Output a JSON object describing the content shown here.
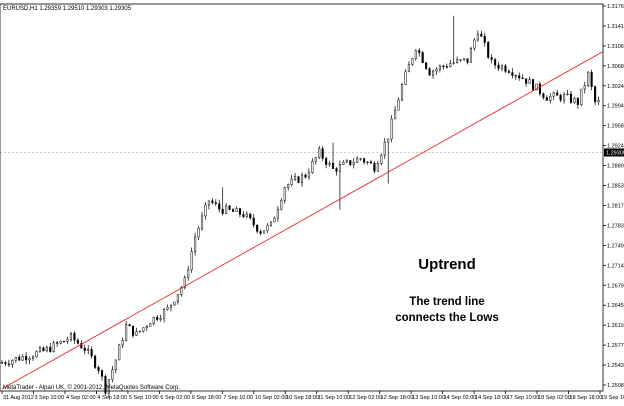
{
  "chart_data": {
    "type": "candlestick",
    "header": "EURUSD,H1  1.29359 1.29510 1.29303 1.29305",
    "footer": "MetaTrader - Alpari UK, © 2001-2012, MetaQuotes Software Corp.",
    "current_price": "1.29305",
    "y_ticks": [
      "1.31760",
      "1.31415",
      "1.31060",
      "1.30680",
      "1.30240",
      "1.29940",
      "1.29585",
      "1.29245",
      "1.28895",
      "1.28535",
      "1.28175",
      "1.27830",
      "1.27495",
      "1.27140",
      "1.26795",
      "1.26455",
      "1.26110",
      "1.25775",
      "1.25435",
      "1.25080"
    ],
    "x_ticks": [
      "31 Aug 2012",
      "3 Sep 10:00",
      "4 Sep 02:00",
      "4 Sep 18:00",
      "5 Sep 10:00",
      "6 Sep 02:00",
      "6 Sep 18:00",
      "7 Sep 10:00",
      "10 Sep 02:00",
      "10 Sep 18:00",
      "11 Sep 10:00",
      "12 Sep 02:00",
      "12 Sep 18:00",
      "13 Sep 10:00",
      "14 Sep 02:00",
      "14 Sep 18:00",
      "17 Sep 10:00",
      "18 Sep 02:00",
      "18 Sep 18:00",
      "19 Sep 10:00"
    ],
    "ylim": [
      1.2504,
      1.3196
    ],
    "annotation_title": "Uptrend",
    "annotation_lines": [
      "The trend line",
      "connects the Lows"
    ],
    "trend_line": {
      "from": {
        "bar": 0,
        "price": 1.2508
      },
      "to": {
        "bar": 185,
        "price": 1.3148
      }
    },
    "path": [
      [
        0,
        1.2555
      ],
      [
        12,
        1.2575
      ],
      [
        20,
        1.26
      ],
      [
        24,
        1.258
      ],
      [
        28,
        1.2545
      ],
      [
        30,
        1.2508
      ],
      [
        33,
        1.256
      ],
      [
        36,
        1.262
      ],
      [
        39,
        1.2605
      ],
      [
        43,
        1.263
      ],
      [
        48,
        1.265
      ],
      [
        53,
        1.27
      ],
      [
        56,
        1.278
      ],
      [
        60,
        1.2845
      ],
      [
        63,
        1.283
      ],
      [
        70,
        1.282
      ],
      [
        75,
        1.279
      ],
      [
        78,
        1.28
      ],
      [
        82,
        1.287
      ],
      [
        88,
        1.289
      ],
      [
        92,
        1.293
      ],
      [
        96,
        1.29
      ],
      [
        100,
        1.291
      ],
      [
        104,
        1.292
      ],
      [
        108,
        1.2905
      ],
      [
        112,
        1.296
      ],
      [
        116,
        1.305
      ],
      [
        120,
        1.312
      ],
      [
        124,
        1.3075
      ],
      [
        130,
        1.309
      ],
      [
        135,
        1.3095
      ],
      [
        138,
        1.315
      ],
      [
        142,
        1.309
      ],
      [
        147,
        1.308
      ],
      [
        152,
        1.306
      ],
      [
        158,
        1.303
      ],
      [
        163,
        1.303
      ],
      [
        167,
        1.302
      ],
      [
        170,
        1.307
      ],
      [
        172,
        1.302
      ]
    ],
    "spikes": [
      {
        "bar": 30,
        "low": 1.2508
      },
      {
        "bar": 64,
        "high": 1.2868
      },
      {
        "bar": 96,
        "high": 1.2948
      },
      {
        "bar": 98,
        "low": 1.2828
      },
      {
        "bar": 112,
        "low": 1.2875
      },
      {
        "bar": 131,
        "high": 1.3175
      }
    ],
    "colors": {
      "background": "#ffffff",
      "candle": "#000000",
      "grid": "#c0c0c0",
      "trend_line": "#e03030",
      "axis": "#000000"
    }
  }
}
